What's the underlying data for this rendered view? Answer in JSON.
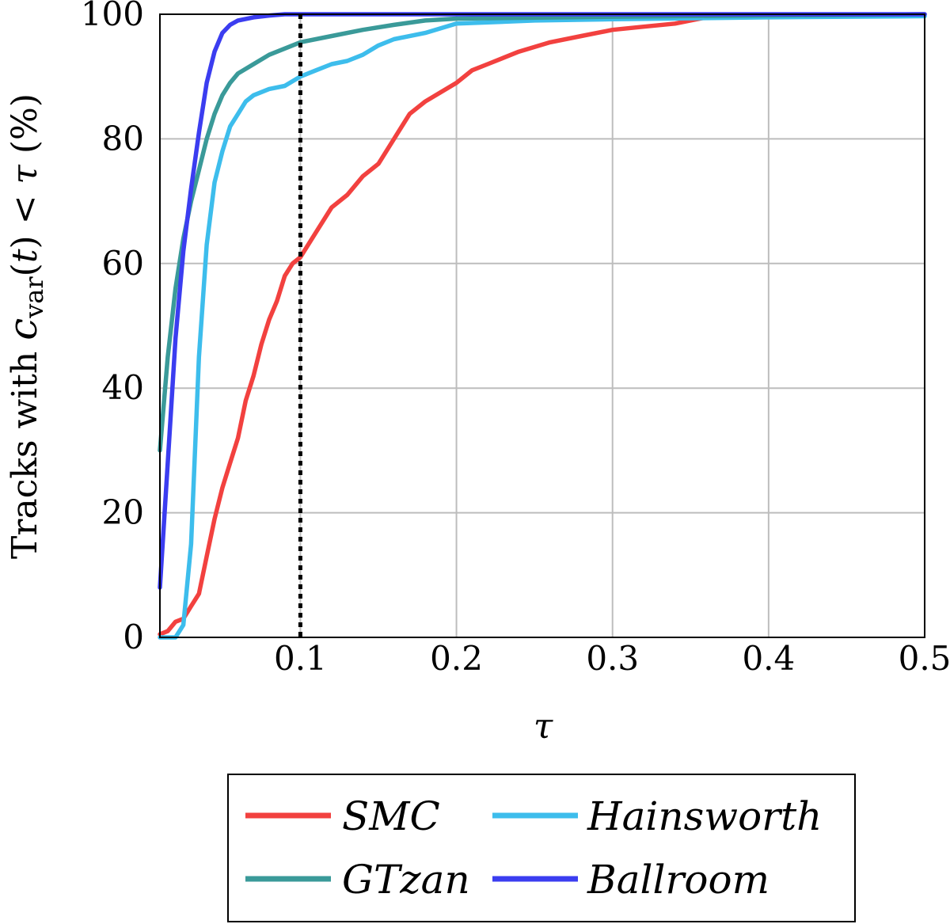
{
  "chart_data": {
    "type": "line",
    "title": "",
    "xlabel": "τ",
    "ylabel": {
      "prefix": "Tracks with ",
      "c": "c",
      "sub": "var",
      "t_open": "(",
      "t": "t",
      "t_close": ")",
      "lt": " < ",
      "tau": "τ",
      "unit": " (%)"
    },
    "xlim": [
      0.01,
      0.5
    ],
    "ylim": [
      0,
      100
    ],
    "xticks": [
      0.1,
      0.2,
      0.3,
      0.4,
      0.5
    ],
    "xtick_labels": [
      "0.1",
      "0.2",
      "0.3",
      "0.4",
      "0.5"
    ],
    "yticks": [
      0,
      20,
      40,
      60,
      80,
      100
    ],
    "ytick_labels": [
      "0",
      "20",
      "40",
      "60",
      "80",
      "100"
    ],
    "grid": true,
    "reference_line": {
      "x": 0.1,
      "style": "dotted",
      "color": "#000000"
    },
    "legend": {
      "placement": "below",
      "columns": 2
    },
    "series": [
      {
        "name": "SMC",
        "color": "#f2413f",
        "points": [
          [
            0.01,
            0.5
          ],
          [
            0.015,
            1
          ],
          [
            0.02,
            2.5
          ],
          [
            0.025,
            3
          ],
          [
            0.03,
            5
          ],
          [
            0.035,
            7
          ],
          [
            0.04,
            13
          ],
          [
            0.045,
            19
          ],
          [
            0.05,
            24
          ],
          [
            0.055,
            28
          ],
          [
            0.06,
            32
          ],
          [
            0.065,
            38
          ],
          [
            0.07,
            42
          ],
          [
            0.075,
            47
          ],
          [
            0.08,
            51
          ],
          [
            0.085,
            54
          ],
          [
            0.09,
            58
          ],
          [
            0.095,
            60
          ],
          [
            0.1,
            61
          ],
          [
            0.11,
            65
          ],
          [
            0.12,
            69
          ],
          [
            0.13,
            71
          ],
          [
            0.14,
            74
          ],
          [
            0.15,
            76
          ],
          [
            0.16,
            80
          ],
          [
            0.17,
            84
          ],
          [
            0.18,
            86
          ],
          [
            0.19,
            87.5
          ],
          [
            0.2,
            89
          ],
          [
            0.21,
            91
          ],
          [
            0.22,
            92
          ],
          [
            0.24,
            94
          ],
          [
            0.26,
            95.5
          ],
          [
            0.28,
            96.5
          ],
          [
            0.3,
            97.5
          ],
          [
            0.32,
            98
          ],
          [
            0.34,
            98.5
          ],
          [
            0.36,
            99.5
          ],
          [
            0.4,
            99.7
          ],
          [
            0.5,
            100
          ]
        ]
      },
      {
        "name": "Hainsworth",
        "color": "#3dbdec",
        "points": [
          [
            0.01,
            0
          ],
          [
            0.02,
            0
          ],
          [
            0.025,
            2
          ],
          [
            0.03,
            15
          ],
          [
            0.035,
            45
          ],
          [
            0.04,
            63
          ],
          [
            0.045,
            73
          ],
          [
            0.05,
            78
          ],
          [
            0.055,
            82
          ],
          [
            0.06,
            84
          ],
          [
            0.065,
            86
          ],
          [
            0.07,
            87
          ],
          [
            0.08,
            88
          ],
          [
            0.09,
            88.5
          ],
          [
            0.1,
            90
          ],
          [
            0.11,
            91
          ],
          [
            0.12,
            92
          ],
          [
            0.13,
            92.5
          ],
          [
            0.14,
            93.5
          ],
          [
            0.15,
            95
          ],
          [
            0.16,
            96
          ],
          [
            0.18,
            97
          ],
          [
            0.2,
            98.5
          ],
          [
            0.25,
            99
          ],
          [
            0.3,
            99.2
          ],
          [
            0.4,
            99.5
          ],
          [
            0.5,
            99.7
          ]
        ]
      },
      {
        "name": "GTzan",
        "color": "#3a9a99",
        "points": [
          [
            0.01,
            30
          ],
          [
            0.015,
            45
          ],
          [
            0.02,
            56
          ],
          [
            0.025,
            64
          ],
          [
            0.03,
            70
          ],
          [
            0.035,
            75
          ],
          [
            0.04,
            80
          ],
          [
            0.045,
            84
          ],
          [
            0.05,
            87
          ],
          [
            0.055,
            89
          ],
          [
            0.06,
            90.5
          ],
          [
            0.07,
            92
          ],
          [
            0.08,
            93.5
          ],
          [
            0.09,
            94.5
          ],
          [
            0.1,
            95.5
          ],
          [
            0.12,
            96.5
          ],
          [
            0.14,
            97.5
          ],
          [
            0.16,
            98.3
          ],
          [
            0.18,
            99
          ],
          [
            0.2,
            99.3
          ],
          [
            0.3,
            99.6
          ],
          [
            0.5,
            100
          ]
        ]
      },
      {
        "name": "Ballroom",
        "color": "#3b3df0",
        "points": [
          [
            0.01,
            8
          ],
          [
            0.015,
            28
          ],
          [
            0.02,
            48
          ],
          [
            0.025,
            62
          ],
          [
            0.03,
            72
          ],
          [
            0.035,
            81
          ],
          [
            0.04,
            89
          ],
          [
            0.045,
            94
          ],
          [
            0.05,
            97
          ],
          [
            0.055,
            98.3
          ],
          [
            0.06,
            99
          ],
          [
            0.07,
            99.5
          ],
          [
            0.08,
            99.8
          ],
          [
            0.09,
            100
          ],
          [
            0.5,
            100
          ]
        ]
      }
    ]
  }
}
